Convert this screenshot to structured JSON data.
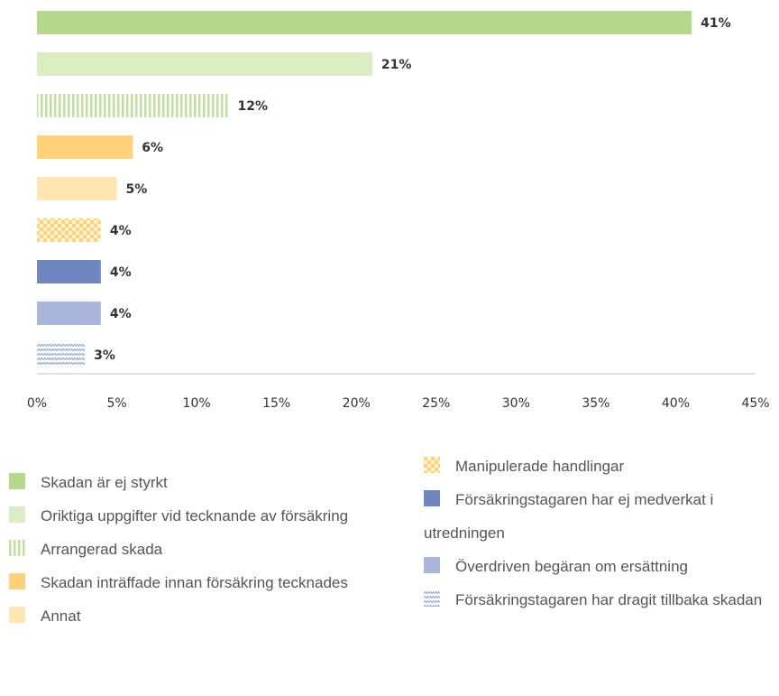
{
  "chart_data": {
    "type": "bar",
    "orientation": "horizontal",
    "categories": [
      "Skadan är ej styrkt",
      "Oriktiga uppgifter vid tecknande av försäkring",
      "Arrangerad skada",
      "Skadan inträffade innan försäkring tecknades",
      "Annat",
      "Manipulerade handlingar",
      "Försäkringstagaren har ej medverkat i utredningen",
      "Överdriven begäran om ersättning",
      "Försäkringstagaren har dragit tillbaka skadan"
    ],
    "values": [
      41,
      21,
      12,
      6,
      5,
      4,
      4,
      4,
      3
    ],
    "value_labels": [
      "41%",
      "21%",
      "12%",
      "6%",
      "5%",
      "4%",
      "4%",
      "4%",
      "3%"
    ],
    "colors": [
      "#b5d98c",
      "#dcedc4",
      "#c3df9c",
      "#ffd27a",
      "#ffe5b2",
      "#ffd27a",
      "#6f86c2",
      "#aab6dc",
      "#8fa1d2"
    ],
    "patterns": [
      "solid",
      "solid",
      "vstripe",
      "solid",
      "solid",
      "checker",
      "solid",
      "solid",
      "wave"
    ],
    "xlim": [
      0,
      45
    ],
    "xticks": [
      {
        "value": 0,
        "label": "0%"
      },
      {
        "value": 5,
        "label": "5%"
      },
      {
        "value": 10,
        "label": "10%"
      },
      {
        "value": 15,
        "label": "15%"
      },
      {
        "value": 20,
        "label": "20%"
      },
      {
        "value": 25,
        "label": "25%"
      },
      {
        "value": 30,
        "label": "30%"
      },
      {
        "value": 35,
        "label": "35%"
      },
      {
        "value": 40,
        "label": "40%"
      },
      {
        "value": 45,
        "label": "45%"
      }
    ]
  }
}
